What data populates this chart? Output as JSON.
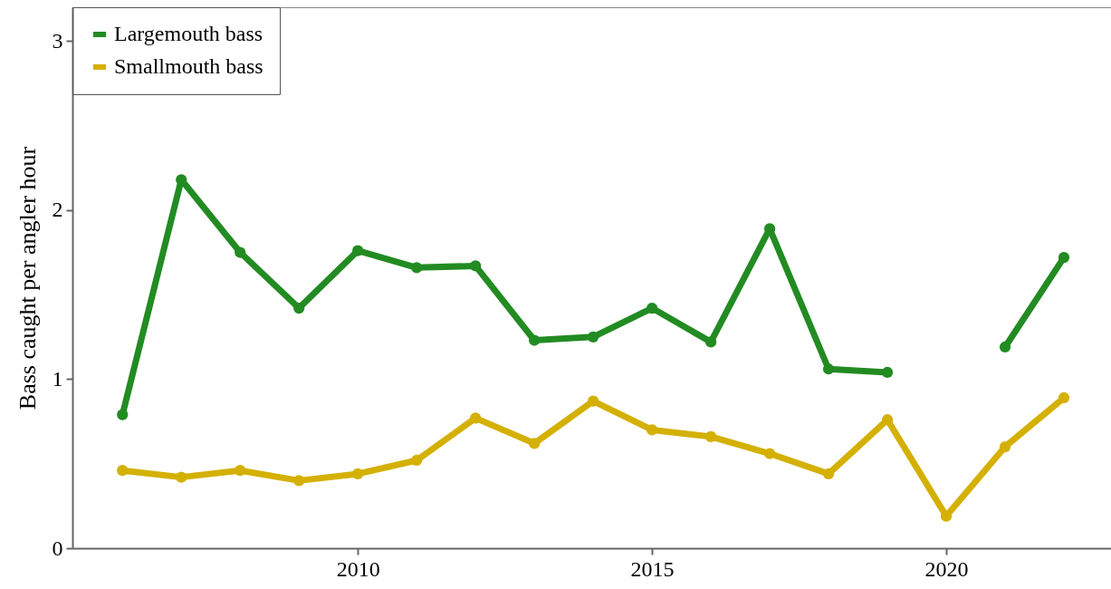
{
  "chart_data": {
    "type": "line",
    "ylabel": "Bass caught per angler hour",
    "x": [
      2006,
      2007,
      2008,
      2009,
      2010,
      2011,
      2012,
      2013,
      2014,
      2015,
      2016,
      2017,
      2018,
      2019,
      2020,
      2021,
      2022
    ],
    "series": [
      {
        "name": "Largemouth bass",
        "color": "#228b22",
        "values": [
          0.79,
          2.18,
          1.75,
          1.42,
          1.76,
          1.66,
          1.67,
          1.23,
          1.25,
          1.42,
          1.22,
          1.89,
          1.06,
          1.04,
          null,
          1.19,
          1.72
        ]
      },
      {
        "name": "Smallmouth bass",
        "color": "#d4b000",
        "values": [
          0.46,
          0.42,
          0.46,
          0.4,
          0.44,
          0.52,
          0.77,
          0.62,
          0.87,
          0.7,
          0.66,
          0.56,
          0.44,
          0.76,
          0.19,
          0.6,
          0.89
        ]
      }
    ],
    "xlim": [
      2005.15,
      2022.8
    ],
    "xticks": [
      2010,
      2015,
      2020
    ],
    "ylim": [
      0,
      3.2
    ],
    "yticks": [
      0,
      1,
      2,
      3
    ],
    "grid": false,
    "legend": "top left",
    "marker": "circle",
    "line_style": "solid"
  }
}
